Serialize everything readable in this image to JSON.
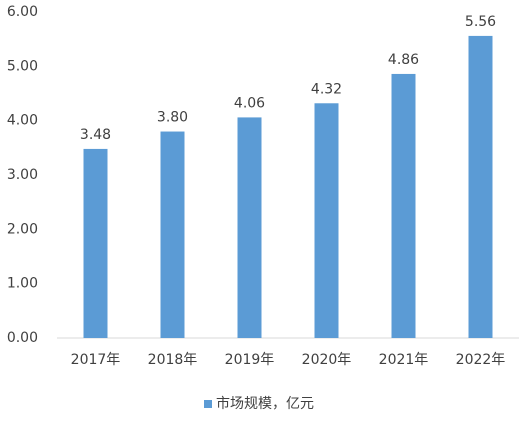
{
  "chart_data": {
    "type": "bar",
    "categories": [
      "2017年",
      "2018年",
      "2019年",
      "2020年",
      "2021年",
      "2022年"
    ],
    "series": [
      {
        "name": "市场规模，亿元",
        "color": "#5b9bd5",
        "values": [
          3.48,
          3.8,
          4.06,
          4.32,
          4.86,
          5.56
        ],
        "value_labels": [
          "3.48",
          "3.80",
          "4.06",
          "4.32",
          "4.86",
          "5.56"
        ]
      }
    ],
    "ylim": [
      0,
      6
    ],
    "yticks": [
      {
        "value": 0,
        "label": "0.00"
      },
      {
        "value": 1,
        "label": "1.00"
      },
      {
        "value": 2,
        "label": "2.00"
      },
      {
        "value": 3,
        "label": "3.00"
      },
      {
        "value": 4,
        "label": "4.00"
      },
      {
        "value": 5,
        "label": "5.00"
      },
      {
        "value": 6,
        "label": "6.00"
      }
    ],
    "grid": false,
    "legend": "bottom"
  }
}
